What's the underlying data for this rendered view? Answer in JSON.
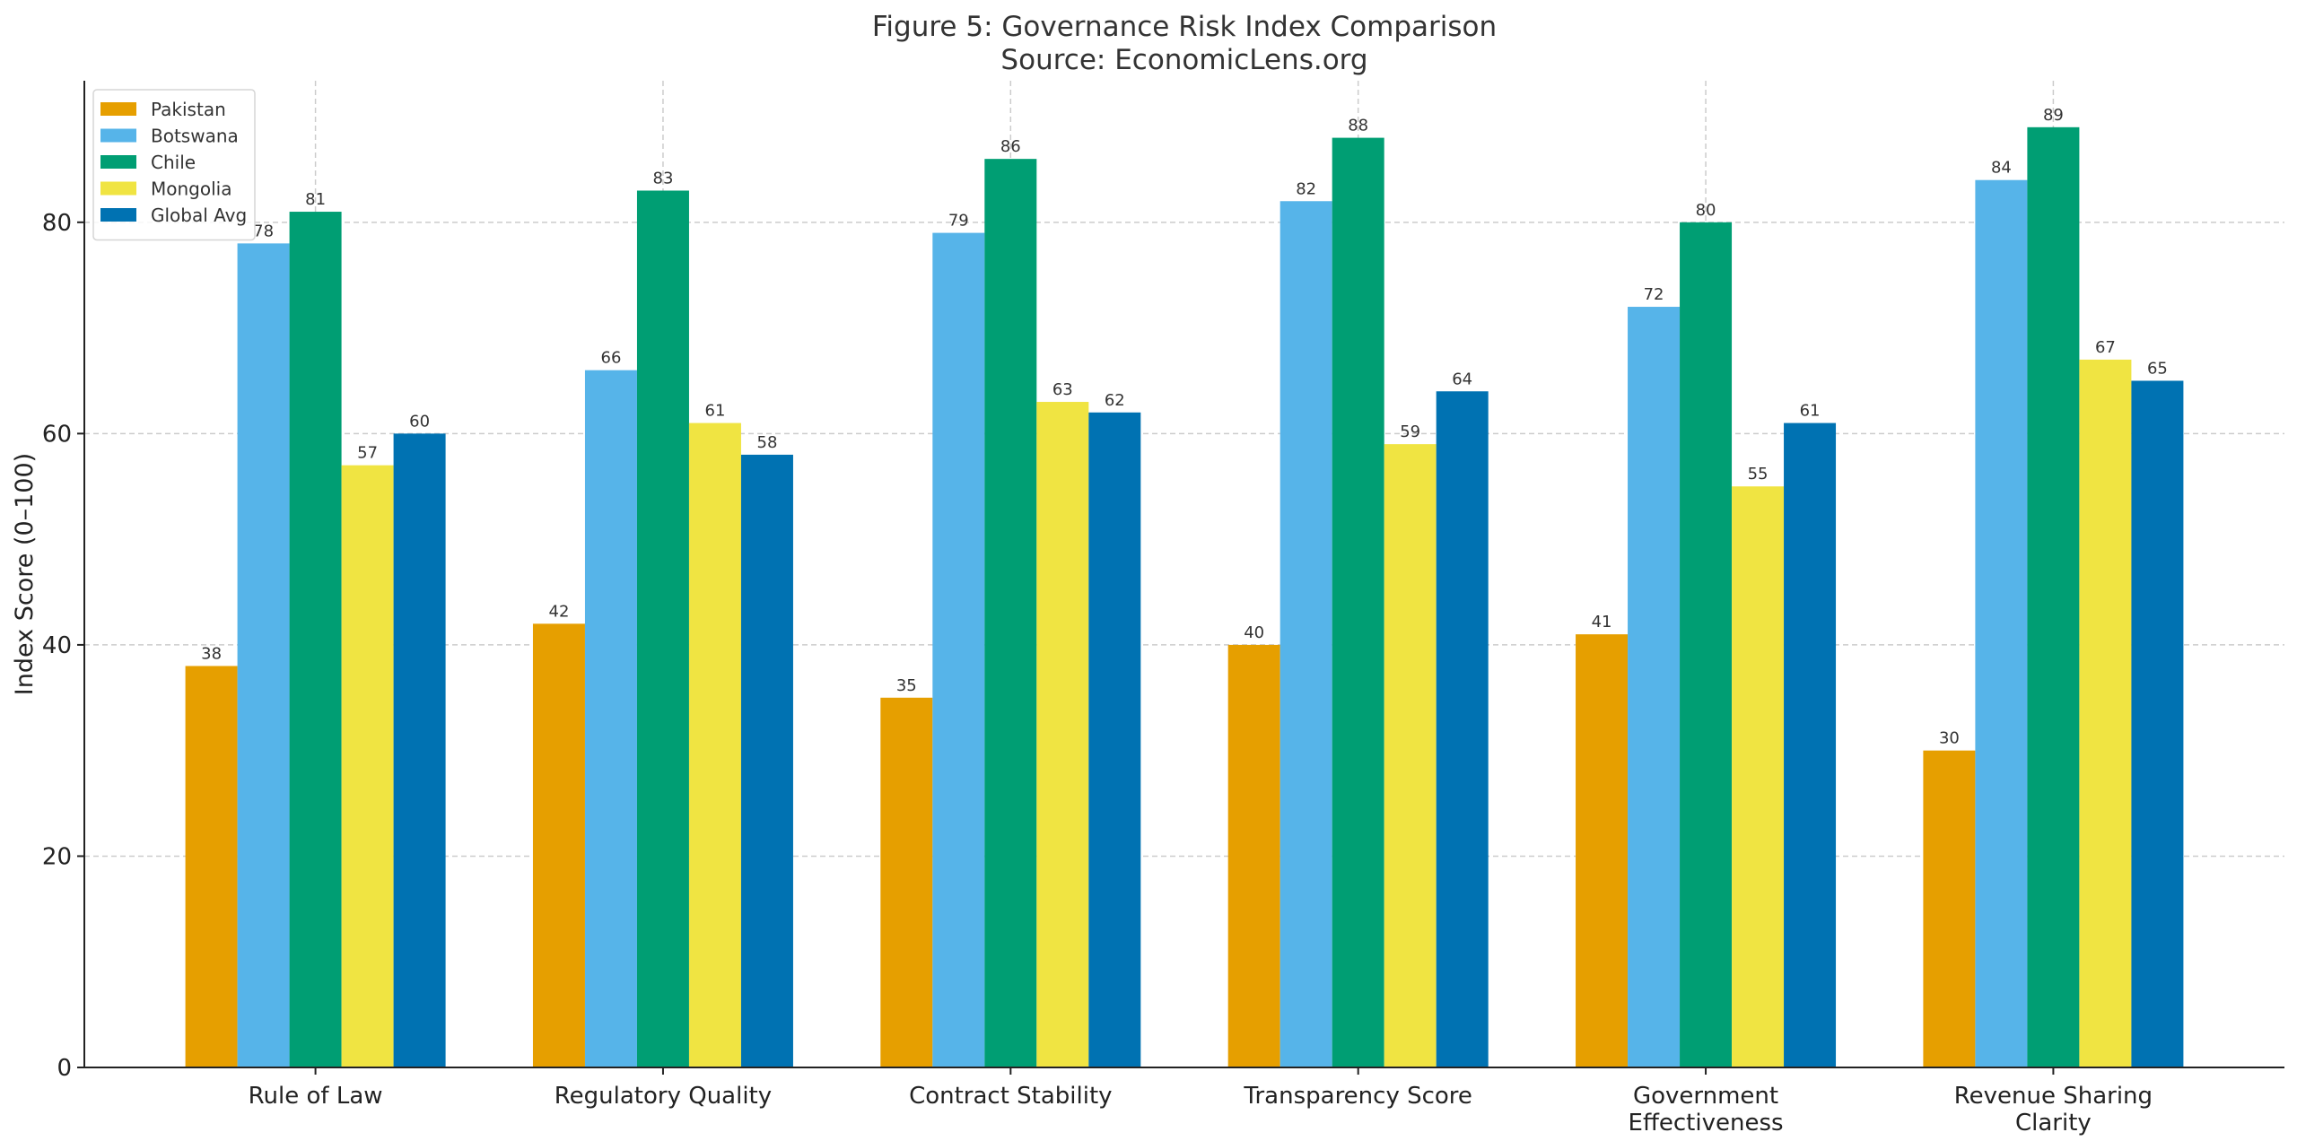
{
  "chart_data": {
    "type": "bar",
    "title": "Figure 5: Governance Risk Index Comparison",
    "subtitle": "Source: EconomicLens.org",
    "xlabel": "",
    "ylabel": "Index Score (0–100)",
    "categories": [
      [
        "Rule of Law"
      ],
      [
        "Regulatory Quality"
      ],
      [
        "Contract Stability"
      ],
      [
        "Transparency Score"
      ],
      [
        "Government",
        "Effectiveness"
      ],
      [
        "Revenue Sharing",
        "Clarity"
      ]
    ],
    "series": [
      {
        "name": "Pakistan",
        "color": "#E69F00",
        "values": [
          38,
          42,
          35,
          40,
          41,
          30
        ]
      },
      {
        "name": "Botswana",
        "color": "#56B4E9",
        "values": [
          78,
          66,
          79,
          82,
          72,
          84
        ]
      },
      {
        "name": "Chile",
        "color": "#009E73",
        "values": [
          81,
          83,
          86,
          88,
          80,
          89
        ]
      },
      {
        "name": "Mongolia",
        "color": "#F0E442",
        "values": [
          57,
          61,
          63,
          59,
          55,
          67
        ]
      },
      {
        "name": "Global Avg",
        "color": "#0072B2",
        "values": [
          60,
          58,
          62,
          64,
          61,
          65
        ]
      }
    ],
    "ylim": [
      0,
      93.4
    ],
    "yticks": [
      0,
      20,
      40,
      60,
      80
    ],
    "grid": true,
    "legend": "top-left",
    "data_labels": true
  }
}
